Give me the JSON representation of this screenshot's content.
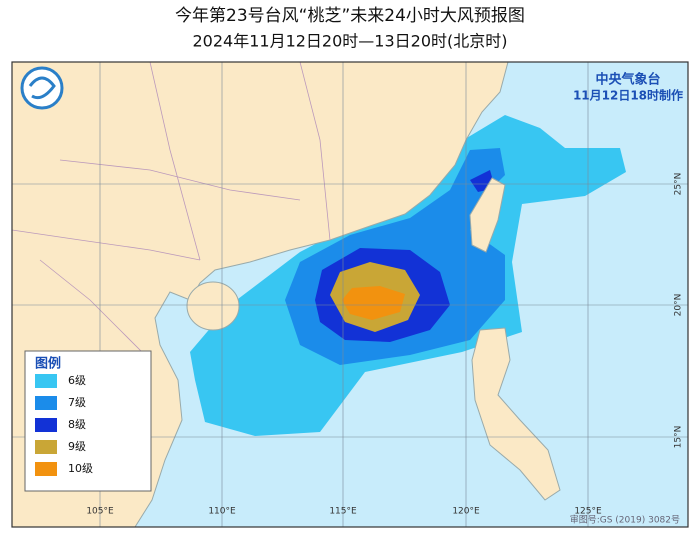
{
  "header": {
    "title": "今年第23号台风“桃芝”未来24小时大风预报图",
    "subtitle": "2024年11月12日20时—13日20时(北京时)"
  },
  "issuer": {
    "agency": "中央气象台",
    "issued": "11月12日18时制作"
  },
  "legend": {
    "title": "图例",
    "items": [
      {
        "label": "6级",
        "color": "#38c6f2"
      },
      {
        "label": "7级",
        "color": "#1b8cea"
      },
      {
        "label": "8级",
        "color": "#1232d6"
      },
      {
        "label": "9级",
        "color": "#c9a636"
      },
      {
        "label": "10级",
        "color": "#f2920f"
      }
    ]
  },
  "longitude_labels": [
    "105°E",
    "110°E",
    "115°E",
    "120°E",
    "125°E"
  ],
  "latitude_labels": [
    "25°N",
    "20°N",
    "15°N"
  ],
  "map_approval": "审图号:GS (2019) 3082号"
}
